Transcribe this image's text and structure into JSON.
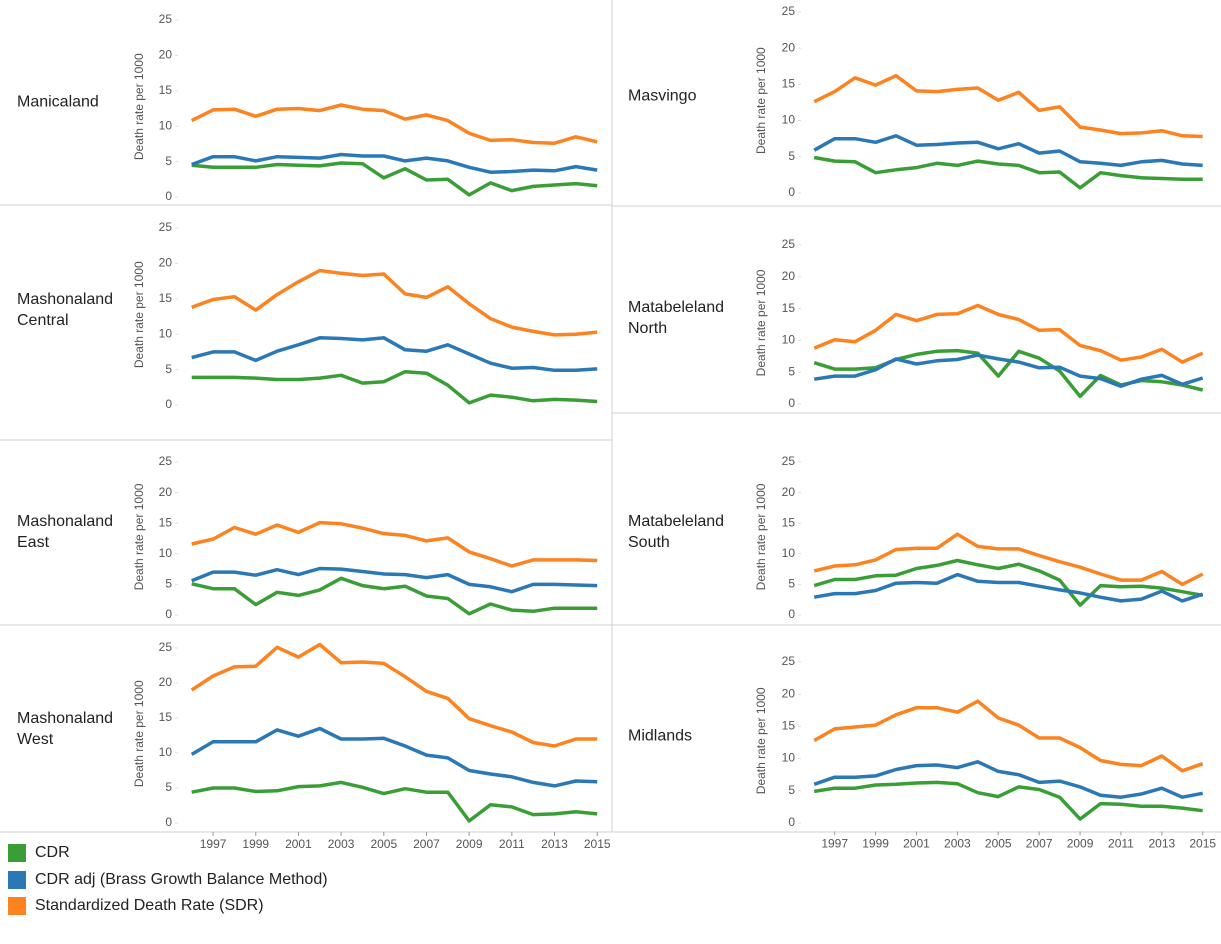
{
  "chart_data": [
    {
      "type": "line",
      "title": "Manicaland",
      "y_label": "Death rate per 1000",
      "x": [
        1996,
        1997,
        1998,
        1999,
        2000,
        2001,
        2002,
        2003,
        2004,
        2005,
        2006,
        2007,
        2008,
        2009,
        2010,
        2011,
        2012,
        2013,
        2014,
        2015
      ],
      "xlim": [
        1995.45,
        2015.6
      ],
      "ylim": [
        -1,
        26.5
      ],
      "yticks": [
        0,
        5,
        10,
        15,
        20,
        25
      ],
      "series": [
        {
          "name": "CDR",
          "color": "#3a9e37",
          "values": [
            4.5,
            4.2,
            4.2,
            4.2,
            4.6,
            4.5,
            4.4,
            4.8,
            4.7,
            2.7,
            4.0,
            2.4,
            2.5,
            0.3,
            2.0,
            0.9,
            1.5,
            1.7,
            1.9,
            1.6
          ]
        },
        {
          "name": "CDR adj (Brass Growth Balance Method)",
          "color": "#2b78b6",
          "values": [
            4.6,
            5.7,
            5.7,
            5.1,
            5.7,
            5.6,
            5.5,
            6.0,
            5.8,
            5.8,
            5.1,
            5.5,
            5.1,
            4.2,
            3.5,
            3.6,
            3.8,
            3.7,
            4.3,
            3.8
          ]
        },
        {
          "name": "Standardized Death Rate (SDR)",
          "color": "#fc8320",
          "values": [
            10.8,
            12.3,
            12.4,
            11.4,
            12.4,
            12.5,
            12.2,
            13.0,
            12.4,
            12.2,
            11.0,
            11.6,
            10.8,
            9.0,
            8.0,
            8.1,
            7.7,
            7.6,
            8.5,
            7.8
          ]
        }
      ]
    },
    {
      "type": "line",
      "title": "Mashonaland Central",
      "y_label": "Death rate per 1000",
      "x": [
        1996,
        1997,
        1998,
        1999,
        2000,
        2001,
        2002,
        2003,
        2004,
        2005,
        2006,
        2007,
        2008,
        2009,
        2010,
        2011,
        2012,
        2013,
        2014,
        2015
      ],
      "xlim": [
        1995.45,
        2015.6
      ],
      "ylim": [
        -1,
        26.5
      ],
      "yticks": [
        0,
        5,
        10,
        15,
        20,
        25
      ],
      "series": [
        {
          "color": "#3a9e37",
          "values": [
            3.9,
            3.9,
            3.9,
            3.8,
            3.6,
            3.6,
            3.8,
            4.2,
            3.1,
            3.3,
            4.7,
            4.5,
            2.8,
            0.3,
            1.4,
            1.1,
            0.6,
            0.8,
            0.7,
            0.5
          ]
        },
        {
          "color": "#2b78b6",
          "values": [
            6.7,
            7.5,
            7.5,
            6.3,
            7.6,
            8.5,
            9.5,
            9.4,
            9.2,
            9.5,
            7.8,
            7.6,
            8.5,
            7.2,
            5.9,
            5.2,
            5.3,
            4.9,
            4.9,
            5.1
          ]
        },
        {
          "color": "#fc8320",
          "values": [
            13.8,
            14.9,
            15.3,
            13.4,
            15.6,
            17.4,
            19.0,
            18.6,
            18.3,
            18.5,
            15.7,
            15.2,
            16.7,
            14.3,
            12.2,
            11.0,
            10.4,
            9.9,
            10.0,
            10.3
          ]
        }
      ]
    },
    {
      "type": "line",
      "title": "Mashonaland East",
      "y_label": "Death rate per 1000",
      "x": [
        1996,
        1997,
        1998,
        1999,
        2000,
        2001,
        2002,
        2003,
        2004,
        2005,
        2006,
        2007,
        2008,
        2009,
        2010,
        2011,
        2012,
        2013,
        2014,
        2015
      ],
      "xlim": [
        1995.45,
        2015.6
      ],
      "ylim": [
        -1,
        26.5
      ],
      "yticks": [
        0,
        5,
        10,
        15,
        20,
        25
      ],
      "series": [
        {
          "color": "#3a9e37",
          "values": [
            5.1,
            4.3,
            4.3,
            1.7,
            3.7,
            3.2,
            4.1,
            6.0,
            4.8,
            4.3,
            4.7,
            3.1,
            2.7,
            0.2,
            1.8,
            0.8,
            0.6,
            1.1,
            1.1,
            1.1
          ]
        },
        {
          "color": "#2b78b6",
          "values": [
            5.6,
            7.0,
            7.0,
            6.5,
            7.4,
            6.6,
            7.6,
            7.5,
            7.1,
            6.7,
            6.6,
            6.1,
            6.6,
            5.0,
            4.6,
            3.8,
            5.0,
            5.0,
            4.9,
            4.8
          ]
        },
        {
          "color": "#fc8320",
          "values": [
            11.6,
            12.4,
            14.3,
            13.2,
            14.7,
            13.5,
            15.1,
            14.9,
            14.2,
            13.3,
            13.0,
            12.1,
            12.6,
            10.3,
            9.2,
            8.0,
            9.0,
            9.0,
            9.0,
            8.9
          ]
        }
      ]
    },
    {
      "type": "line",
      "title": "Mashonaland West",
      "y_label": "Death rate per 1000",
      "x": [
        1996,
        1997,
        1998,
        1999,
        2000,
        2001,
        2002,
        2003,
        2004,
        2005,
        2006,
        2007,
        2008,
        2009,
        2010,
        2011,
        2012,
        2013,
        2014,
        2015
      ],
      "xlim": [
        1995.45,
        2015.6
      ],
      "xticks": [
        1997,
        1999,
        2001,
        2003,
        2005,
        2007,
        2009,
        2011,
        2013,
        2015
      ],
      "ylim": [
        -1,
        26.5
      ],
      "yticks": [
        0,
        5,
        10,
        15,
        20,
        25
      ],
      "series": [
        {
          "color": "#3a9e37",
          "values": [
            4.4,
            5.0,
            5.0,
            4.5,
            4.6,
            5.2,
            5.3,
            5.8,
            5.1,
            4.2,
            4.9,
            4.4,
            4.4,
            0.3,
            2.6,
            2.3,
            1.2,
            1.3,
            1.6,
            1.3
          ]
        },
        {
          "color": "#2b78b6",
          "values": [
            9.8,
            11.6,
            11.6,
            11.6,
            13.3,
            12.4,
            13.5,
            12.0,
            12.0,
            12.1,
            11.0,
            9.7,
            9.3,
            7.5,
            7.0,
            6.6,
            5.8,
            5.3,
            6.0,
            5.9
          ]
        },
        {
          "color": "#fc8320",
          "values": [
            19.0,
            21.0,
            22.3,
            22.4,
            25.1,
            23.7,
            25.5,
            22.9,
            23.0,
            22.8,
            20.9,
            18.8,
            17.8,
            14.9,
            13.9,
            13.0,
            11.5,
            11.0,
            12.0,
            12.0
          ]
        }
      ]
    },
    {
      "type": "line",
      "title": "Masvingo",
      "y_label": "Death rate per 1000",
      "x": [
        1996,
        1997,
        1998,
        1999,
        2000,
        2001,
        2002,
        2003,
        2004,
        2005,
        2006,
        2007,
        2008,
        2009,
        2010,
        2011,
        2012,
        2013,
        2014,
        2015
      ],
      "xlim": [
        1995.45,
        2015.6
      ],
      "ylim": [
        -1,
        26.5
      ],
      "yticks": [
        0,
        5,
        10,
        15,
        20,
        25
      ],
      "series": [
        {
          "color": "#3a9e37",
          "values": [
            4.9,
            4.4,
            4.3,
            2.8,
            3.2,
            3.5,
            4.1,
            3.8,
            4.4,
            4.0,
            3.8,
            2.8,
            2.9,
            0.7,
            2.8,
            2.4,
            2.1,
            2.0,
            1.9,
            1.9
          ]
        },
        {
          "color": "#2b78b6",
          "values": [
            5.9,
            7.5,
            7.5,
            7.0,
            7.9,
            6.6,
            6.7,
            6.9,
            7.0,
            6.1,
            6.8,
            5.5,
            5.8,
            4.3,
            4.1,
            3.8,
            4.3,
            4.5,
            4.0,
            3.8
          ]
        },
        {
          "color": "#fc8320",
          "values": [
            12.6,
            14.0,
            15.9,
            14.9,
            16.2,
            14.1,
            14.0,
            14.3,
            14.5,
            12.8,
            13.9,
            11.4,
            11.9,
            9.1,
            8.7,
            8.2,
            8.3,
            8.6,
            7.9,
            7.8
          ]
        }
      ]
    },
    {
      "type": "line",
      "title": "Matabeleland North",
      "y_label": "Death rate per 1000",
      "x": [
        1996,
        1997,
        1998,
        1999,
        2000,
        2001,
        2002,
        2003,
        2004,
        2005,
        2006,
        2007,
        2008,
        2009,
        2010,
        2011,
        2012,
        2013,
        2014,
        2015
      ],
      "xlim": [
        1995.45,
        2015.6
      ],
      "ylim": [
        -1,
        26.5
      ],
      "yticks": [
        0,
        5,
        10,
        15,
        20,
        25
      ],
      "series": [
        {
          "color": "#3a9e37",
          "values": [
            6.5,
            5.5,
            5.5,
            5.7,
            7.0,
            7.8,
            8.3,
            8.4,
            8.0,
            4.4,
            8.3,
            7.2,
            5.2,
            1.2,
            4.5,
            3.0,
            3.7,
            3.5,
            3.0,
            2.2
          ]
        },
        {
          "color": "#2b78b6",
          "values": [
            3.9,
            4.4,
            4.4,
            5.4,
            7.1,
            6.3,
            6.8,
            7.0,
            7.7,
            7.1,
            6.6,
            5.7,
            5.8,
            4.4,
            4.0,
            2.8,
            3.9,
            4.5,
            3.1,
            4.1
          ]
        },
        {
          "color": "#fc8320",
          "values": [
            8.8,
            10.1,
            9.8,
            11.6,
            14.1,
            13.1,
            14.1,
            14.2,
            15.5,
            14.1,
            13.3,
            11.6,
            11.7,
            9.2,
            8.4,
            6.9,
            7.4,
            8.6,
            6.6,
            8.0
          ]
        }
      ]
    },
    {
      "type": "line",
      "title": "Matabeleland South",
      "y_label": "Death rate per 1000",
      "x": [
        1996,
        1997,
        1998,
        1999,
        2000,
        2001,
        2002,
        2003,
        2004,
        2005,
        2006,
        2007,
        2008,
        2009,
        2010,
        2011,
        2012,
        2013,
        2014,
        2015
      ],
      "xlim": [
        1995.45,
        2015.6
      ],
      "ylim": [
        -1,
        26.5
      ],
      "yticks": [
        0,
        5,
        10,
        15,
        20,
        25
      ],
      "series": [
        {
          "color": "#3a9e37",
          "values": [
            4.8,
            5.8,
            5.8,
            6.4,
            6.5,
            7.6,
            8.1,
            8.9,
            8.2,
            7.6,
            8.3,
            7.2,
            5.7,
            1.6,
            4.8,
            4.6,
            4.7,
            4.4,
            3.8,
            3.2
          ]
        },
        {
          "color": "#2b78b6",
          "values": [
            2.9,
            3.5,
            3.5,
            4.0,
            5.2,
            5.3,
            5.2,
            6.6,
            5.5,
            5.3,
            5.3,
            4.7,
            4.1,
            3.6,
            2.9,
            2.3,
            2.6,
            3.9,
            2.3,
            3.4
          ]
        },
        {
          "color": "#fc8320",
          "values": [
            7.2,
            8.0,
            8.2,
            9.0,
            10.7,
            10.9,
            10.9,
            13.2,
            11.2,
            10.8,
            10.8,
            9.7,
            8.7,
            7.8,
            6.7,
            5.7,
            5.7,
            7.1,
            5.0,
            6.7
          ]
        }
      ]
    },
    {
      "type": "line",
      "title": "Midlands",
      "y_label": "Death rate per 1000",
      "x": [
        1996,
        1997,
        1998,
        1999,
        2000,
        2001,
        2002,
        2003,
        2004,
        2005,
        2006,
        2007,
        2008,
        2009,
        2010,
        2011,
        2012,
        2013,
        2014,
        2015
      ],
      "xlim": [
        1995.45,
        2015.6
      ],
      "xticks": [
        1997,
        1999,
        2001,
        2003,
        2005,
        2007,
        2009,
        2011,
        2013,
        2015
      ],
      "ylim": [
        -1,
        26.5
      ],
      "yticks": [
        0,
        5,
        10,
        15,
        20,
        25
      ],
      "series": [
        {
          "color": "#3a9e37",
          "values": [
            4.9,
            5.4,
            5.4,
            5.9,
            6.0,
            6.2,
            6.3,
            6.1,
            4.7,
            4.1,
            5.6,
            5.2,
            4.0,
            0.6,
            3.0,
            2.9,
            2.6,
            2.6,
            2.3,
            1.9
          ]
        },
        {
          "color": "#2b78b6",
          "values": [
            6.0,
            7.1,
            7.1,
            7.3,
            8.3,
            8.9,
            9.0,
            8.6,
            9.5,
            8.0,
            7.5,
            6.3,
            6.5,
            5.6,
            4.3,
            4.0,
            4.5,
            5.4,
            4.0,
            4.6
          ]
        },
        {
          "color": "#fc8320",
          "values": [
            12.8,
            14.6,
            14.9,
            15.2,
            16.8,
            17.9,
            17.9,
            17.2,
            18.9,
            16.3,
            15.2,
            13.2,
            13.2,
            11.7,
            9.7,
            9.1,
            8.9,
            10.4,
            8.1,
            9.2
          ]
        }
      ]
    }
  ]
}
